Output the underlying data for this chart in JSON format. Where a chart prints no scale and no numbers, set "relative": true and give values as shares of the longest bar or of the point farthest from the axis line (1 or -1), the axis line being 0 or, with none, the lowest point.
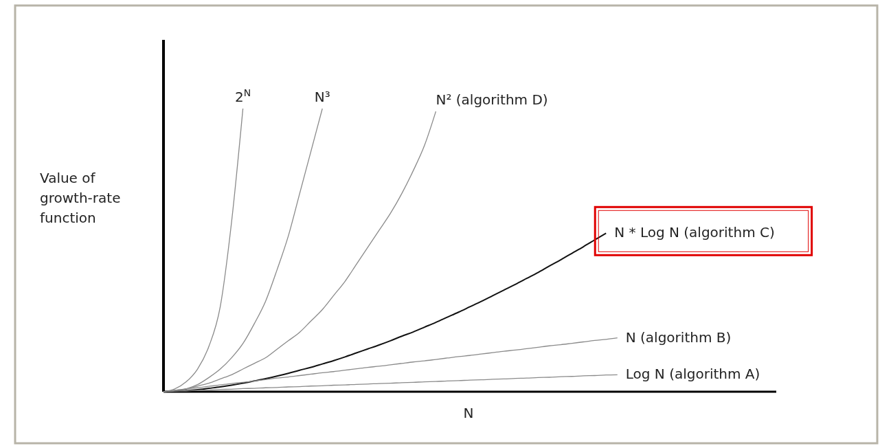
{
  "chart_data": {
    "type": "line",
    "relative": true,
    "xlabel": "N",
    "ylabel": "Value of growth-rate function",
    "categories": [
      null,
      null,
      null,
      null,
      null,
      null,
      null,
      null,
      null,
      null,
      null,
      null,
      null,
      null,
      null,
      null,
      null,
      null,
      null,
      null,
      null,
      null,
      null,
      null,
      null,
      null,
      null,
      null,
      null,
      null,
      null,
      null,
      null,
      null,
      null,
      null,
      null,
      null,
      null,
      null,
      null,
      null,
      null,
      null,
      null,
      null,
      null,
      null,
      null,
      null,
      null,
      null,
      null,
      null,
      null
    ],
    "series": [
      {
        "name": "2$^{N}$",
        "color": "#8a8a8a",
        "values": [
          0,
          0.01,
          0.035,
          0.08,
          0.16,
          0.3,
          0.6,
          1,
          null,
          null,
          null,
          null,
          null,
          null,
          null,
          null,
          null,
          null,
          null,
          null,
          null,
          null,
          null,
          null,
          null,
          null,
          null,
          null,
          null,
          null,
          null,
          null,
          null,
          null,
          null,
          null,
          null,
          null,
          null,
          null,
          null,
          null,
          null,
          null,
          null,
          null,
          null,
          null,
          null,
          null,
          null,
          null,
          null,
          null,
          null
        ]
      },
      {
        "name": "N³",
        "color": "#8a8a8a",
        "values": [
          0,
          0.003,
          0.01,
          0.025,
          0.05,
          0.08,
          0.12,
          0.17,
          0.24,
          0.32,
          0.43,
          0.55,
          0.7,
          0.85,
          1,
          null,
          null,
          null,
          null,
          null,
          null,
          null,
          null,
          null,
          null,
          null,
          null,
          null,
          null,
          null,
          null,
          null,
          null,
          null,
          null,
          null,
          null,
          null,
          null,
          null,
          null,
          null,
          null,
          null,
          null,
          null,
          null,
          null,
          null,
          null,
          null,
          null,
          null,
          null,
          null
        ]
      },
      {
        "name": "N² (algorithm D)",
        "color": "#8a8a8a",
        "values": [
          0,
          0.005,
          0.01,
          0.02,
          0.03,
          0.045,
          0.06,
          0.08,
          0.1,
          0.12,
          0.15,
          0.18,
          0.21,
          0.25,
          0.29,
          0.34,
          0.39,
          0.45,
          0.51,
          0.57,
          0.63,
          0.7,
          0.78,
          0.87,
          0.99,
          null,
          null,
          null,
          null,
          null,
          null,
          null,
          null,
          null,
          null,
          null,
          null,
          null,
          null,
          null,
          null,
          null,
          null,
          null,
          null,
          null,
          null,
          null,
          null,
          null,
          null,
          null,
          null,
          null,
          null
        ]
      },
      {
        "name": "N * Log N (algorithm C)",
        "color": "#111111",
        "values": [
          0,
          0.001,
          0.004,
          0.007,
          0.012,
          0.017,
          0.023,
          0.03,
          0.038,
          0.046,
          0.055,
          0.065,
          0.076,
          0.086,
          0.098,
          0.11,
          0.123,
          0.137,
          0.151,
          0.165,
          0.18,
          0.196,
          0.211,
          0.228,
          0.245,
          0.263,
          0.281,
          0.3,
          0.319,
          0.339,
          0.359,
          0.379,
          0.4,
          0.421,
          0.444,
          0.466,
          0.489,
          0.512,
          0.536,
          0.56,
          null,
          null,
          null,
          null,
          null,
          null,
          null,
          null,
          null,
          null,
          null,
          null,
          null,
          null,
          null
        ]
      },
      {
        "name": "N (algorithm B)",
        "color": "#8a8a8a",
        "values": [
          0,
          0.005,
          0.01,
          0.014,
          0.019,
          0.024,
          0.029,
          0.033,
          0.038,
          0.043,
          0.048,
          0.052,
          0.057,
          0.062,
          0.067,
          0.071,
          0.076,
          0.081,
          0.086,
          0.09,
          0.095,
          0.1,
          0.105,
          0.109,
          0.114,
          0.119,
          0.124,
          0.128,
          0.133,
          0.138,
          0.143,
          0.147,
          0.152,
          0.157,
          0.162,
          0.166,
          0.171,
          0.176,
          0.181,
          0.185,
          0.19,
          null,
          null,
          null,
          null,
          null,
          null,
          null,
          null,
          null,
          null,
          null,
          null,
          null,
          null
        ]
      },
      {
        "name": "Log N (algorithm A)",
        "color": "#8a8a8a",
        "values": [
          0,
          0.002,
          0.003,
          0.005,
          0.006,
          0.008,
          0.009,
          0.011,
          0.012,
          0.014,
          0.015,
          0.017,
          0.018,
          0.02,
          0.021,
          0.023,
          0.024,
          0.026,
          0.027,
          0.029,
          0.03,
          0.032,
          0.033,
          0.035,
          0.036,
          0.038,
          0.039,
          0.041,
          0.042,
          0.044,
          0.045,
          0.047,
          0.048,
          0.05,
          0.051,
          0.053,
          0.054,
          0.056,
          0.057,
          0.059,
          0.06,
          null,
          null,
          null,
          null,
          null,
          null,
          null,
          null,
          null,
          null,
          null,
          null,
          null,
          null
        ]
      }
    ]
  }
}
